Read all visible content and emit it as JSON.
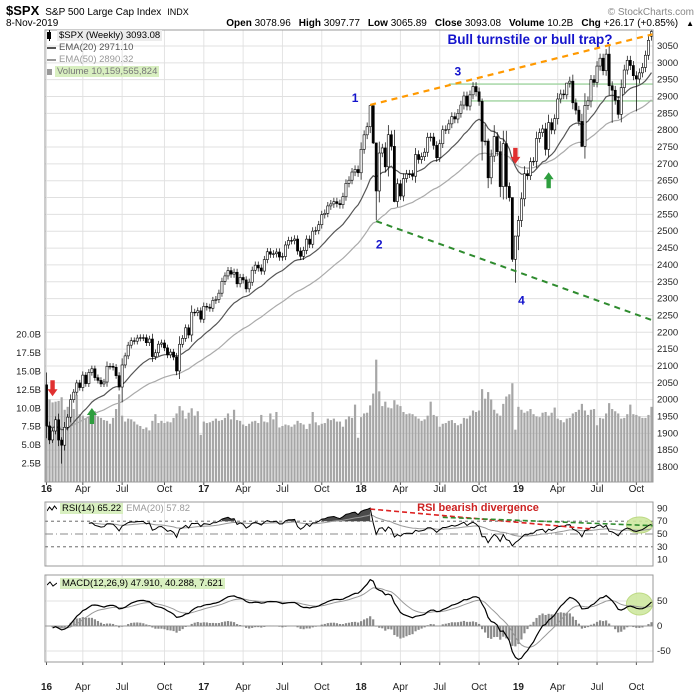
{
  "header": {
    "symbol": "$SPX",
    "name": "S&P 500 Large Cap Index",
    "exchange": "INDX",
    "copyright": "© StockCharts.com",
    "date": "8-Nov-2019",
    "quote": [
      {
        "label": "Open",
        "value": "3078.96"
      },
      {
        "label": "High",
        "value": "3097.77"
      },
      {
        "label": "Low",
        "value": "3065.89"
      },
      {
        "label": "Close",
        "value": "3093.08"
      },
      {
        "label": "Volume",
        "value": "10.2B"
      },
      {
        "label": "Chg",
        "value": "+26.17 (+0.85%)"
      }
    ],
    "direction_icon": "▲"
  },
  "legend_main": {
    "series": "$SPX (Weekly) 3093.08",
    "ema20": "EMA(20) 2971.10",
    "ema50": "EMA(50) 2890.32",
    "volume": "Volume 10,159,565,824"
  },
  "legend_rsi": {
    "rsi": "RSI(14) 65.22",
    "ema": "EMA(20) 57.82"
  },
  "legend_macd": {
    "macd": "MACD(12,26,9) 47.910, 40.288, 7.621"
  },
  "annotations": {
    "blue": "#1414cc",
    "title": "Bull turnstile or bull trap?",
    "rsi_note": "RSI bearish divergence",
    "points": [
      {
        "label": "1",
        "week": 102,
        "price": 2895
      },
      {
        "label": "2",
        "week": 110,
        "price": 2460
      },
      {
        "label": "3",
        "week": 136,
        "price": 2975
      },
      {
        "label": "4",
        "week": 157,
        "price": 2295
      }
    ],
    "trendlines": [
      {
        "from": [
          107,
          2875
        ],
        "to": [
          201,
          3085
        ],
        "color": "#ff9900",
        "dash": "6,5",
        "width": 2.2
      },
      {
        "from": [
          109,
          2530
        ],
        "to": [
          201,
          2235
        ],
        "color": "#2e8b2e",
        "dash": "6,5",
        "width": 2
      }
    ],
    "hlines": [
      {
        "price": 2937,
        "from_week": 133,
        "color": "#9fd39f"
      },
      {
        "price": 2887,
        "from_week": 140,
        "color": "#9fd39f"
      }
    ],
    "arrows": [
      {
        "week": 2,
        "price": 2010,
        "dir": "down",
        "color": "#e03030"
      },
      {
        "week": 15,
        "price": 1975,
        "dir": "up",
        "color": "#2e9e3e"
      },
      {
        "week": 155,
        "price": 2700,
        "dir": "down",
        "color": "#e03030"
      },
      {
        "week": 166,
        "price": 2675,
        "dir": "up",
        "color": "#2e9e3e"
      }
    ],
    "rsi_lines": [
      {
        "from": [
          107,
          89
        ],
        "to": [
          180,
          58
        ],
        "color": "#dd2222"
      },
      {
        "from": [
          131,
          76
        ],
        "to": [
          201,
          63
        ],
        "color": "#2e8b2e"
      }
    ],
    "ellipses": [
      {
        "panel": "rsi",
        "week": 196,
        "value": 64,
        "rx": 13,
        "ry": 8
      },
      {
        "panel": "macd",
        "week": 196,
        "value": 44,
        "rx": 13,
        "ry": 11
      }
    ]
  },
  "chart_data": {
    "type": "candlestick",
    "timeframe": "weekly",
    "title": "$SPX (Weekly)",
    "start": "Jan 2016",
    "end": "8-Nov-2019",
    "price_axis": {
      "min": 1800,
      "max": 3050,
      "step": 50
    },
    "volume_axis": [
      {
        "label": "20.0B",
        "value": 20
      },
      {
        "label": "17.5B",
        "value": 17.5
      },
      {
        "label": "15.0B",
        "value": 15
      },
      {
        "label": "12.5B",
        "value": 12.5
      },
      {
        "label": "10.0B",
        "value": 10
      },
      {
        "label": "7.5B",
        "value": 7.5
      },
      {
        "label": "5.0B",
        "value": 5
      },
      {
        "label": "2.5B",
        "value": 2.5
      }
    ],
    "rsi_axis": [
      90,
      70,
      50,
      30,
      10
    ],
    "macd_axis": [
      50,
      0,
      -50
    ],
    "x_ticks": [
      {
        "label": "16",
        "week": 0,
        "bold": true
      },
      {
        "label": "Apr",
        "week": 12
      },
      {
        "label": "Jul",
        "week": 25
      },
      {
        "label": "Oct",
        "week": 39
      },
      {
        "label": "17",
        "week": 52,
        "bold": true
      },
      {
        "label": "Apr",
        "week": 65
      },
      {
        "label": "Jul",
        "week": 78
      },
      {
        "label": "Oct",
        "week": 91
      },
      {
        "label": "18",
        "week": 104,
        "bold": true
      },
      {
        "label": "Apr",
        "week": 117
      },
      {
        "label": "Jul",
        "week": 130
      },
      {
        "label": "Oct",
        "week": 143
      },
      {
        "label": "19",
        "week": 156,
        "bold": true
      },
      {
        "label": "Apr",
        "week": 169
      },
      {
        "label": "Jul",
        "week": 182
      },
      {
        "label": "Oct",
        "week": 195
      }
    ],
    "prev_close": 2043.94,
    "closes": [
      1922.03,
      1880.33,
      1906.9,
      1940.24,
      1880.05,
      1864.78,
      1917.78,
      1948.05,
      1999.99,
      2022.19,
      2049.58,
      2035.94,
      2072.78,
      2047.6,
      2080.73,
      2091.58,
      2065.3,
      2057.14,
      2046.61,
      2052.32,
      2099.06,
      2099.13,
      2096.07,
      2071.22,
      2037.41,
      2102.95,
      2129.9,
      2161.74,
      2175.03,
      2173.6,
      2182.87,
      2184.05,
      2183.87,
      2169.04,
      2179.98,
      2127.81,
      2139.16,
      2164.69,
      2168.27,
      2153.74,
      2132.98,
      2141.16,
      2126.41,
      2085.18,
      2164.45,
      2181.9,
      2213.35,
      2191.95,
      2259.53,
      2258.07,
      2263.79,
      2238.83,
      2276.98,
      2274.64,
      2271.31,
      2294.69,
      2297.42,
      2316.1,
      2351.16,
      2367.34,
      2383.12,
      2372.6,
      2378.25,
      2343.98,
      2362.72,
      2355.54,
      2328.95,
      2348.69,
      2384.2,
      2399.29,
      2390.9,
      2381.73,
      2415.82,
      2439.07,
      2431.77,
      2433.15,
      2438.3,
      2423.41,
      2425.18,
      2459.27,
      2472.54,
      2472.1,
      2476.83,
      2441.32,
      2425.55,
      2443.05,
      2476.55,
      2461.43,
      2500.23,
      2502.22,
      2519.36,
      2549.33,
      2553.17,
      2575.21,
      2581.07,
      2587.84,
      2582.3,
      2578.85,
      2602.42,
      2642.22,
      2651.5,
      2675.81,
      2683.34,
      2673.61,
      2743.15,
      2786.24,
      2810.3,
      2872.87,
      2762.13,
      2619.55,
      2732.22,
      2747.3,
      2691.25,
      2786.57,
      2752.01,
      2588.26,
      2640.87,
      2604.47,
      2656.3,
      2670.14,
      2669.91,
      2663.42,
      2727.72,
      2712.97,
      2721.33,
      2734.62,
      2779.03,
      2779.66,
      2754.88,
      2718.37,
      2759.82,
      2801.31,
      2801.83,
      2818.82,
      2840.35,
      2833.28,
      2850.13,
      2874.69,
      2901.52,
      2871.68,
      2904.98,
      2929.67,
      2913.98,
      2885.57,
      2767.13,
      2767.78,
      2658.69,
      2723.06,
      2781.01,
      2736.27,
      2632.56,
      2760.17,
      2633.08,
      2599.95,
      2416.62,
      2485.74,
      2531.94,
      2596.26,
      2670.71,
      2664.76,
      2706.53,
      2707.88,
      2775.6,
      2792.67,
      2803.69,
      2743.07,
      2822.48,
      2800.71,
      2834.4,
      2892.74,
      2907.41,
      2905.03,
      2939.88,
      2945.64,
      2881.4,
      2859.53,
      2826.06,
      2752.06,
      2873.34,
      2886.98,
      2950.46,
      2941.76,
      2990.41,
      3013.77,
      2976.61,
      3025.86,
      2932.05,
      2918.65,
      2888.68,
      2847.11,
      2926.46,
      2978.71,
      3007.39,
      2992.07,
      2961.79,
      2952.01,
      2970.27,
      2986.2,
      3022.55,
      3066.91,
      3093.08
    ],
    "highs_override": {
      "107": 2873,
      "108": 2873,
      "109": 2763,
      "144": 2894,
      "145": 2817,
      "146": 2775,
      "148": 2815,
      "154": 2600,
      "155": 2468,
      "172": 2940,
      "180": 2964
    },
    "lows_override": {
      "5": 1810,
      "25": 1992,
      "108": 2759,
      "109": 2533,
      "115": 2586,
      "144": 2710,
      "146": 2628,
      "154": 2409,
      "155": 2347,
      "156": 2444,
      "177": 2750,
      "187": 2822,
      "195": 2856
    },
    "last_bar": {
      "open": 3078.96,
      "high": 3097.77,
      "low": 3065.89,
      "close": 3093.08
    },
    "volumes": [
      10.5,
      11.2,
      10.8,
      10.9,
      11.0,
      11.5,
      9.8,
      10.2,
      10.6,
      9.9,
      11.8,
      9.2,
      9.0,
      8.6,
      8.8,
      9.1,
      9.6,
      8.9,
      8.7,
      8.4,
      8.3,
      7.9,
      8.7,
      9.9,
      11.9,
      9.0,
      8.2,
      8.6,
      8.5,
      8.2,
      7.8,
      7.6,
      7.2,
      7.4,
      7.0,
      8.3,
      9.2,
      8.0,
      8.3,
      8.0,
      8.2,
      8.1,
      8.7,
      9.3,
      10.3,
      9.7,
      8.6,
      9.4,
      10.0,
      9.0,
      9.6,
      6.4,
      8.2,
      8.0,
      8.1,
      8.3,
      8.6,
      8.3,
      8.4,
      8.7,
      9.3,
      8.5,
      9.8,
      8.4,
      8.3,
      7.8,
      7.6,
      7.9,
      8.2,
      8.3,
      8.0,
      9.1,
      8.2,
      8.1,
      9.3,
      8.5,
      9.5,
      7.4,
      7.6,
      7.8,
      7.7,
      7.5,
      7.8,
      8.3,
      8.0,
      7.8,
      7.2,
      7.9,
      9.5,
      8.1,
      7.7,
      7.9,
      8.0,
      8.6,
      8.4,
      8.6,
      8.2,
      8.2,
      7.5,
      8.5,
      8.9,
      8.7,
      10.5,
      6.0,
      8.8,
      9.3,
      9.4,
      10.4,
      12.0,
      16.6,
      12.3,
      10.3,
      10.9,
      10.1,
      10.0,
      11.1,
      10.5,
      10.3,
      9.5,
      9.2,
      9.3,
      9.2,
      8.9,
      8.6,
      8.3,
      8.5,
      9.0,
      10.9,
      9.1,
      8.9,
      7.5,
      7.9,
      8.0,
      8.3,
      8.4,
      8.0,
      7.7,
      7.9,
      8.7,
      8.6,
      9.0,
      9.7,
      9.5,
      9.7,
      12.6,
      11.3,
      12.2,
      11.2,
      9.8,
      9.3,
      9.0,
      10.6,
      11.6,
      11.9,
      13.4,
      7.1,
      10.2,
      9.8,
      9.4,
      9.6,
      9.9,
      9.2,
      8.9,
      8.8,
      9.4,
      9.5,
      9.0,
      9.4,
      10.1,
      8.6,
      8.4,
      8.1,
      8.6,
      8.7,
      9.3,
      9.5,
      9.8,
      10.6,
      9.7,
      9.1,
      9.8,
      9.9,
      7.7,
      8.7,
      8.6,
      9.3,
      10.7,
      9.9,
      9.6,
      9.3,
      8.6,
      8.7,
      9.2,
      10.5,
      9.2,
      9.1,
      8.9,
      8.7,
      8.7,
      9.1,
      10.2
    ],
    "indicators": {
      "ema20_last": 2971.1,
      "ema50_last": 2890.32,
      "rsi14_last": 65.22,
      "rsi_ema20_last": 57.82,
      "macd_last": [
        47.91,
        40.288,
        7.621
      ]
    }
  }
}
